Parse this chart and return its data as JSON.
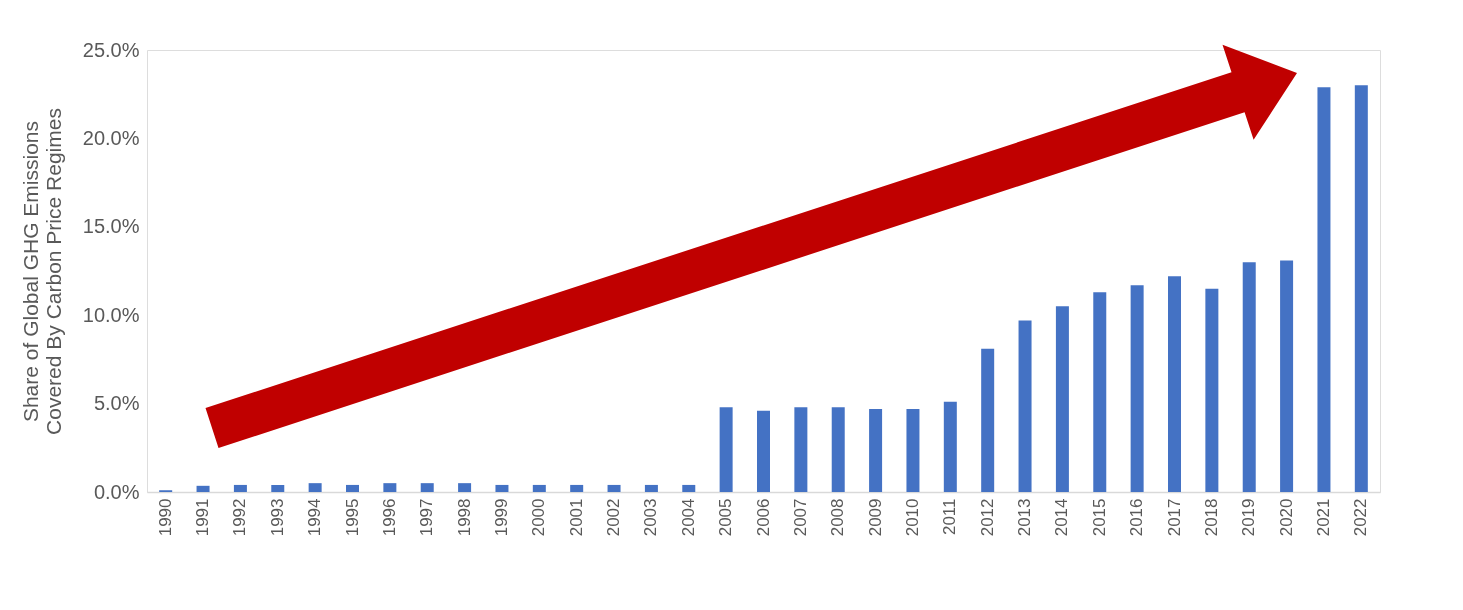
{
  "chart_data": {
    "type": "bar",
    "ylabel": "Share of Global GHG Emissions\nCovered By Carbon Price Regimes",
    "categories": [
      "1990",
      "1991",
      "1992",
      "1993",
      "1994",
      "1995",
      "1996",
      "1997",
      "1998",
      "1999",
      "2000",
      "2001",
      "2002",
      "2003",
      "2004",
      "2005",
      "2006",
      "2007",
      "2008",
      "2009",
      "2010",
      "2011",
      "2012",
      "2013",
      "2014",
      "2015",
      "2016",
      "2017",
      "2018",
      "2019",
      "2020",
      "2021",
      "2022"
    ],
    "series": [
      {
        "color": "#4472c4",
        "values": [
          0.1,
          0.35,
          0.4,
          0.4,
          0.5,
          0.4,
          0.5,
          0.5,
          0.5,
          0.4,
          0.4,
          0.4,
          0.4,
          0.4,
          0.4,
          4.8,
          4.6,
          4.8,
          4.8,
          4.7,
          4.7,
          5.1,
          8.1,
          9.7,
          10.5,
          11.3,
          11.7,
          12.2,
          11.5,
          13.0,
          13.1,
          22.9,
          23.0
        ]
      }
    ],
    "ylim": [
      0,
      25
    ],
    "yticks": [
      {
        "value": 0,
        "label": "0.0%"
      },
      {
        "value": 5,
        "label": "5.0%"
      },
      {
        "value": 10,
        "label": "10.0%"
      },
      {
        "value": 15,
        "label": "15.0%"
      },
      {
        "value": 20,
        "label": "20.0%"
      },
      {
        "value": 25,
        "label": "25.0%"
      }
    ],
    "grid": false,
    "legend": false
  }
}
